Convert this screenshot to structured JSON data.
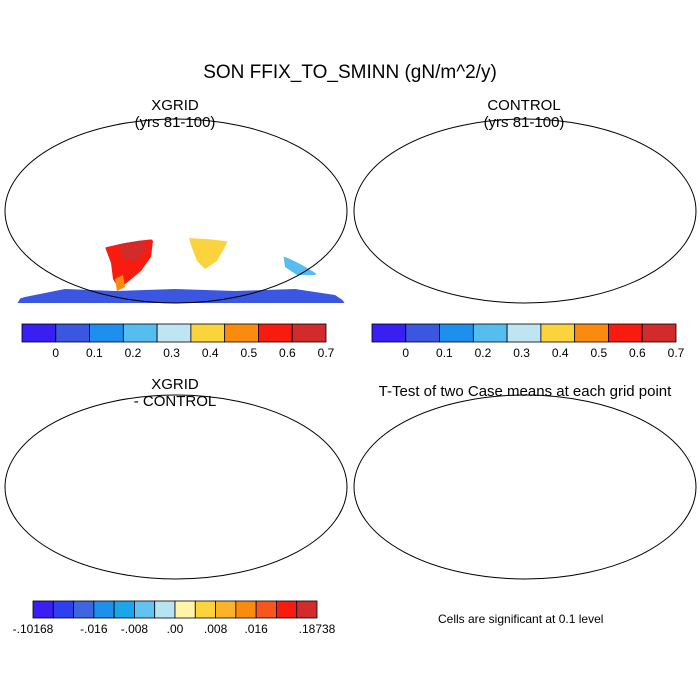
{
  "title": "SON FFIX_TO_SMINN (gN/m^2/y)",
  "panels": [
    {
      "id": "xgrid",
      "title_line1": "XGRID",
      "title_line2": "(yrs 81-100)"
    },
    {
      "id": "control",
      "title_line1": "CONTROL",
      "title_line2": "(yrs 81-100)"
    },
    {
      "id": "diff",
      "title_line1": "XGRID",
      "title_line2": "- CONTROL"
    },
    {
      "id": "ttest",
      "title_line1": "T-Test of two Case means at each grid point",
      "title_line2": ""
    }
  ],
  "colorbar_abs": {
    "colors": [
      "#3a1ff2",
      "#3b56e0",
      "#1f8fee",
      "#55bdef",
      "#bfe4f2",
      "#fbd33d",
      "#fb8b0f",
      "#f81c10",
      "#d22b2b"
    ],
    "labels": [
      "0",
      "0.1",
      "0.2",
      "0.3",
      "0.4",
      "0.5",
      "0.6",
      "0.7"
    ]
  },
  "colorbar_diff": {
    "colors": [
      "#3a1ff2",
      "#2f3ff0",
      "#3d66e0",
      "#1f8fee",
      "#1ba6ec",
      "#62c2f0",
      "#b7e3f2",
      "#fff5a8",
      "#fbd33d",
      "#fbb32a",
      "#fb8b0f",
      "#f8561c",
      "#f81c10",
      "#d22b2b"
    ],
    "labels": [
      "-.10168",
      "-.016",
      "-.008",
      ".00",
      ".008",
      ".016",
      ".18738"
    ]
  },
  "ttest_note": "Cells are significant at 0.1 level",
  "map_colors": {
    "abs_land": "#3b56e0",
    "abs_north": "#1f8fee",
    "abs_mid": "#55bdef",
    "abs_warm": "#fbd33d",
    "abs_orange": "#fb8b0f",
    "abs_red": "#f81c10",
    "abs_darkred": "#d22b2b",
    "antarctica_abs": "#3b56e0",
    "diff_land": "#fbd33d",
    "diff_antarctica": "#fff5a8",
    "sig_red": "#f00000"
  }
}
